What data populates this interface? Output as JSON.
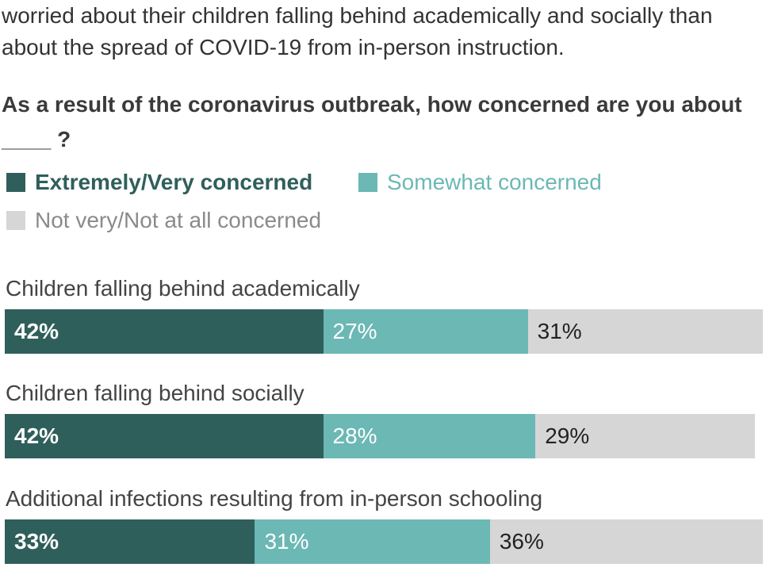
{
  "intro_text": "worried about their children falling behind academically and socially than about the spread of COVID-19 from in-person instruction.",
  "question": "As a result of the coronavirus outbreak, how concerned are you about ____ ?",
  "chart_data": {
    "type": "bar",
    "orientation": "horizontal",
    "stacked": true,
    "categories": [
      "Children falling behind academically",
      "Children falling behind socially",
      "Additional infections resulting from in-person schooling"
    ],
    "series": [
      {
        "name": "Extremely/Very concerned",
        "color": "#2f5f5b",
        "text_color": "#ffffff",
        "bold": true,
        "values": [
          42,
          42,
          33
        ],
        "labels": [
          "42%",
          "42%",
          "33%"
        ]
      },
      {
        "name": "Somewhat concerned",
        "color": "#6bb8b5",
        "text_color": "#ffffff",
        "bold": false,
        "values": [
          27,
          28,
          31
        ],
        "labels": [
          "27%",
          "28%",
          "31%"
        ]
      },
      {
        "name": "Not very/Not at all concerned",
        "color": "#d6d6d6",
        "text_color": "#222222",
        "bold": false,
        "values": [
          31,
          29,
          36
        ],
        "labels": [
          "31%",
          "29%",
          "36%"
        ]
      }
    ],
    "xlim": [
      0,
      100
    ],
    "legend": "top",
    "grid": false
  }
}
